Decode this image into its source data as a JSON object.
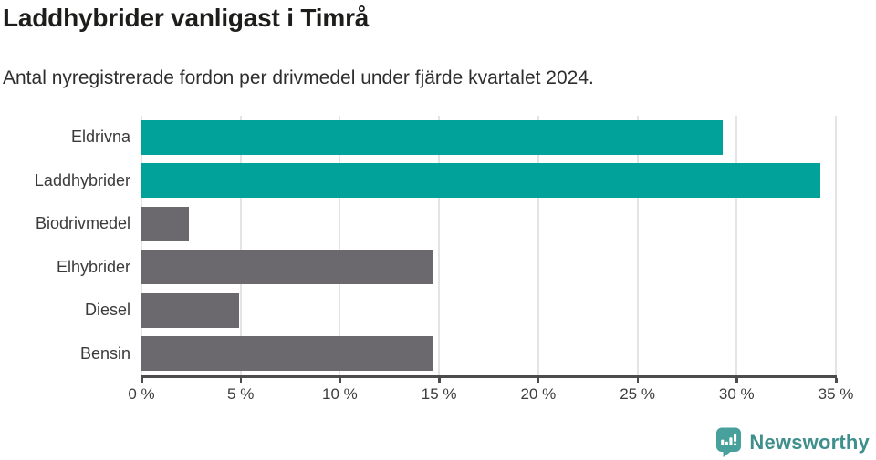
{
  "header": {
    "title": "Laddhybrider vanligast i Timrå",
    "subtitle": "Antal nyregistrerade fordon per drivmedel under fjärde kvartalet 2024."
  },
  "chart_data": {
    "type": "bar",
    "orientation": "horizontal",
    "title": "Laddhybrider vanligast i Timrå",
    "subtitle": "Antal nyregistrerade fordon per drivmedel under fjärde kvartalet 2024.",
    "categories": [
      "Eldrivna",
      "Laddhybrider",
      "Biodrivmedel",
      "Elhybrider",
      "Diesel",
      "Bensin"
    ],
    "values": [
      29.3,
      34.2,
      2.4,
      14.7,
      4.9,
      14.7
    ],
    "value_unit": "%",
    "bar_colors": [
      "#00a299",
      "#00a299",
      "#6b686e",
      "#6b686e",
      "#6b686e",
      "#6b686e"
    ],
    "highlight_color": "#00a299",
    "default_color": "#6b686e",
    "xlim": [
      0,
      35
    ],
    "xticks": [
      0,
      5,
      10,
      15,
      20,
      25,
      30,
      35
    ],
    "xtick_label_format": "{v} %",
    "grid": true,
    "gridline_color": "#e4e4e4",
    "axis_color": "#4c4c4c",
    "legend": "none",
    "ylabel": "",
    "xlabel": ""
  },
  "footer": {
    "brand": "Newsworthy",
    "brand_color": "#3f8f8c",
    "icon_color": "#47a09c"
  }
}
